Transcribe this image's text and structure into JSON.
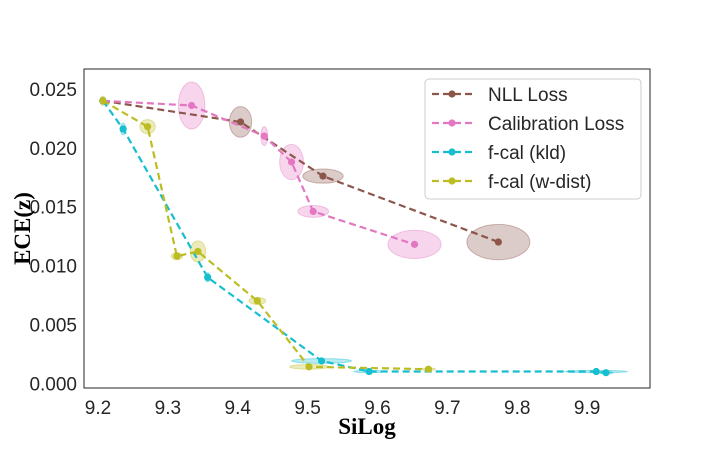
{
  "chart_data": {
    "type": "line",
    "title": "",
    "xlabel": "SiLog",
    "ylabel": "ECE(z)",
    "xlim": [
      9.18,
      9.99
    ],
    "ylim": [
      -0.0004,
      0.0267
    ],
    "x_ticks": [
      "9.2",
      "9.3",
      "9.4",
      "9.5",
      "9.6",
      "9.7",
      "9.8",
      "9.9"
    ],
    "x_tick_values": [
      9.2,
      9.3,
      9.4,
      9.5,
      9.6,
      9.7,
      9.8,
      9.9
    ],
    "y_ticks": [
      "0.000",
      "0.005",
      "0.010",
      "0.015",
      "0.020",
      "0.025"
    ],
    "y_tick_values": [
      0.0,
      0.005,
      0.01,
      0.015,
      0.02,
      0.025
    ],
    "grid": false,
    "legend_position": "top-right",
    "series": [
      {
        "name": "NLL Loss",
        "color": "#8c564b",
        "points": [
          {
            "x": 9.207,
            "y": 0.024,
            "sx": 0.0,
            "sy": 0.0
          },
          {
            "x": 9.404,
            "y": 0.0222,
            "sx": 0.016,
            "sy": 0.0013
          },
          {
            "x": 9.522,
            "y": 0.0176,
            "sx": 0.029,
            "sy": 0.0006
          },
          {
            "x": 9.773,
            "y": 0.012,
            "sx": 0.045,
            "sy": 0.0015
          }
        ]
      },
      {
        "name": "Calibration Loss",
        "color": "#e377c2",
        "points": [
          {
            "x": 9.207,
            "y": 0.024,
            "sx": 0.0,
            "sy": 0.0
          },
          {
            "x": 9.334,
            "y": 0.0236,
            "sx": 0.019,
            "sy": 0.002
          },
          {
            "x": 9.438,
            "y": 0.021,
            "sx": 0.005,
            "sy": 0.0008
          },
          {
            "x": 9.477,
            "y": 0.0188,
            "sx": 0.017,
            "sy": 0.0015
          },
          {
            "x": 9.508,
            "y": 0.0146,
            "sx": 0.022,
            "sy": 0.0005
          },
          {
            "x": 9.653,
            "y": 0.0118,
            "sx": 0.038,
            "sy": 0.0012
          }
        ]
      },
      {
        "name": "f-cal (kld)",
        "color": "#17becf",
        "points": [
          {
            "x": 9.207,
            "y": 0.024,
            "sx": 0.0,
            "sy": 0.0
          },
          {
            "x": 9.236,
            "y": 0.0216,
            "sx": 0.004,
            "sy": 0.0005
          },
          {
            "x": 9.357,
            "y": 0.009,
            "sx": 0.004,
            "sy": 0.0004
          },
          {
            "x": 9.52,
            "y": 0.0019,
            "sx": 0.043,
            "sy": 0.0002
          },
          {
            "x": 9.588,
            "y": 0.001,
            "sx": 0.022,
            "sy": 0.0001
          },
          {
            "x": 9.913,
            "y": 0.001,
            "sx": 0.045,
            "sy": 0.0001
          },
          {
            "x": 9.927,
            "y": 0.0009,
            "sx": 0.01,
            "sy": 0.0001
          }
        ]
      },
      {
        "name": "f-cal (w-dist)",
        "color": "#bcbd22",
        "points": [
          {
            "x": 9.207,
            "y": 0.024,
            "sx": 0.004,
            "sy": 0.0004
          },
          {
            "x": 9.271,
            "y": 0.0218,
            "sx": 0.011,
            "sy": 0.0006
          },
          {
            "x": 9.313,
            "y": 0.0108,
            "sx": 0.008,
            "sy": 0.0003
          },
          {
            "x": 9.343,
            "y": 0.0112,
            "sx": 0.011,
            "sy": 0.0009
          },
          {
            "x": 9.428,
            "y": 0.007,
            "sx": 0.012,
            "sy": 0.0003
          },
          {
            "x": 9.502,
            "y": 0.0014,
            "sx": 0.028,
            "sy": 0.0002
          },
          {
            "x": 9.673,
            "y": 0.0012,
            "sx": 0.01,
            "sy": 0.0001
          }
        ]
      }
    ]
  }
}
